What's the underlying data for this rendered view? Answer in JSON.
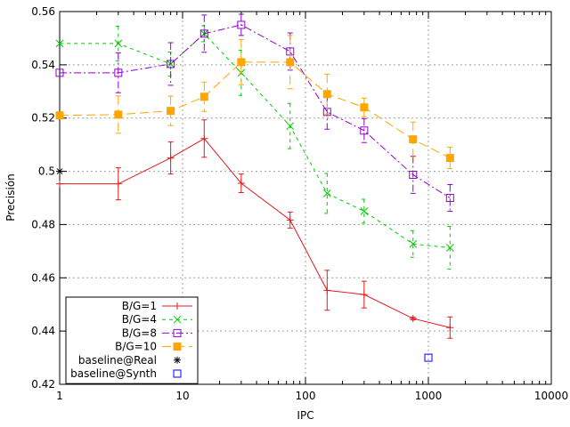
{
  "chart_data": {
    "type": "line",
    "xlabel": "IPC",
    "ylabel": "Precisión",
    "xscale": "log",
    "xlim": [
      1,
      10000
    ],
    "ylim": [
      0.42,
      0.56
    ],
    "grid": true,
    "legend_position": "bottom-left",
    "x_ticks": [
      {
        "value": 1,
        "label": "1"
      },
      {
        "value": 10,
        "label": "10"
      },
      {
        "value": 100,
        "label": "100"
      },
      {
        "value": 1000,
        "label": "1000"
      },
      {
        "value": 10000,
        "label": "10000"
      }
    ],
    "y_ticks": [
      {
        "value": 0.42,
        "label": "0.42"
      },
      {
        "value": 0.44,
        "label": "0.44"
      },
      {
        "value": 0.46,
        "label": "0.46"
      },
      {
        "value": 0.48,
        "label": "0.48"
      },
      {
        "value": 0.5,
        "label": "0.5"
      },
      {
        "value": 0.52,
        "label": "0.52"
      },
      {
        "value": 0.54,
        "label": "0.54"
      },
      {
        "value": 0.56,
        "label": "0.56"
      }
    ],
    "series": [
      {
        "name": "B/G=1",
        "color": "#e41a1c",
        "marker": "plus",
        "line": "solid",
        "x": [
          1,
          3,
          8,
          15,
          30,
          75,
          150,
          300,
          750,
          1500
        ],
        "y": [
          0.4953,
          0.4953,
          0.505,
          0.5123,
          0.4955,
          0.4817,
          0.4553,
          0.4537,
          0.4447,
          0.4413
        ],
        "err": [
          0,
          0.006,
          0.006,
          0.007,
          0.0035,
          0.003,
          0.0075,
          0.005,
          0.0005,
          0.004
        ]
      },
      {
        "name": "B/G=4",
        "color": "#00cc00",
        "marker": "x",
        "line": "dashed",
        "x": [
          1,
          3,
          8,
          15,
          30,
          75,
          150,
          300,
          750,
          1500
        ],
        "y": [
          0.548,
          0.548,
          0.5403,
          0.5517,
          0.537,
          0.517,
          0.4917,
          0.485,
          0.4727,
          0.4713
        ],
        "err": [
          0,
          0.0065,
          0.0045,
          0.003,
          0.0085,
          0.0085,
          0.0075,
          0.0045,
          0.005,
          0.008
        ]
      },
      {
        "name": "B/G=8",
        "color": "#9400d3",
        "marker": "square-open",
        "line": "dashdot",
        "x": [
          1,
          3,
          8,
          15,
          30,
          75,
          150,
          300,
          750,
          1500
        ],
        "y": [
          0.537,
          0.537,
          0.5403,
          0.5517,
          0.555,
          0.545,
          0.5223,
          0.5153,
          0.4987,
          0.49
        ],
        "err": [
          0,
          0.0075,
          0.008,
          0.007,
          0.004,
          0.007,
          0.0065,
          0.0045,
          0.007,
          0.005
        ]
      },
      {
        "name": "B/G=10",
        "color": "#ffa500",
        "marker": "square-filled",
        "line": "longdash",
        "x": [
          1,
          3,
          8,
          15,
          30,
          75,
          150,
          300,
          750,
          1500
        ],
        "y": [
          0.521,
          0.5213,
          0.5227,
          0.528,
          0.541,
          0.541,
          0.529,
          0.524,
          0.512,
          0.505
        ],
        "err": [
          0,
          0.007,
          0.0055,
          0.0055,
          0.0085,
          0.01,
          0.0075,
          0.0035,
          0.0065,
          0.004
        ]
      },
      {
        "name": "baseline@Real",
        "color": "#000000",
        "marker": "star",
        "line": "none",
        "x": [
          1
        ],
        "y": [
          0.5
        ]
      },
      {
        "name": "baseline@Synth",
        "color": "#0000ff",
        "marker": "square-open",
        "line": "none",
        "x": [
          1000
        ],
        "y": [
          0.43
        ]
      }
    ]
  }
}
